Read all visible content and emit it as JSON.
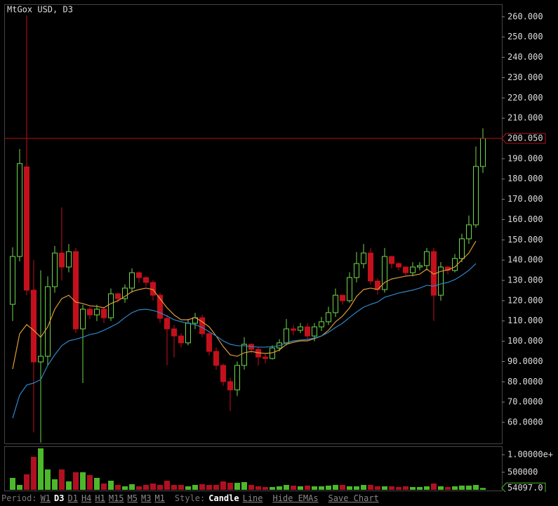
{
  "chart_data": {
    "type": "candlestick",
    "title": "MtGox USD, D3",
    "open": [
      118.2,
      141.8,
      186.0,
      125.2,
      89.8,
      92.6,
      126.9,
      143.5,
      136.6,
      144.2,
      106.1,
      115.8,
      113.0,
      115.8,
      111.6,
      123.4,
      121.0,
      126.2,
      133.8,
      131.4,
      129.0,
      122.7,
      111.3,
      106.1,
      102.6,
      99.2,
      108.9,
      111.6,
      103.7,
      95.0,
      88.1,
      80.1,
      76.0,
      88.1,
      98.5,
      96.0,
      92.2,
      91.5,
      96.7,
      99.2,
      106.1,
      105.4,
      107.1,
      102.6,
      107.1,
      109.6,
      114.1,
      122.7,
      120.0,
      131.4,
      138.3,
      143.5,
      129.7,
      125.5,
      141.8,
      138.3,
      136.6,
      133.8,
      136.6,
      137.3,
      144.2,
      122.7,
      136.6,
      134.9,
      140.8,
      150.5,
      157.4,
      186.2
    ],
    "high": [
      146.3,
      194.8,
      260.7,
      140.0,
      135.0,
      132.0,
      147.0,
      166.0,
      148.0,
      146.0,
      118.0,
      117.0,
      118.0,
      117.0,
      126.0,
      124.0,
      128.0,
      136.0,
      134.5,
      132.0,
      130.0,
      124.0,
      113.0,
      108.0,
      104.0,
      111.0,
      114.0,
      113.0,
      105.0,
      97.0,
      89.0,
      82.0,
      90.0,
      102.0,
      99.0,
      97.0,
      94.0,
      98.0,
      101.0,
      111.0,
      108.0,
      109.0,
      109.0,
      109.0,
      112.0,
      117.0,
      126.0,
      123.0,
      134.0,
      144.0,
      148.0,
      146.0,
      131.0,
      146.0,
      142.0,
      139.0,
      137.0,
      139.0,
      139.0,
      146.0,
      146.0,
      139.0,
      137.0,
      143.0,
      153.0,
      162.0,
      196.0,
      205.0
    ],
    "low": [
      110.0,
      139.4,
      122.7,
      55.0,
      50.0,
      88.0,
      124.0,
      130.0,
      134.0,
      104.0,
      79.4,
      111.0,
      110.0,
      109.0,
      110.0,
      119.0,
      119.0,
      124.0,
      129.0,
      127.0,
      120.0,
      109.0,
      88.1,
      92.0,
      97.0,
      98.0,
      106.0,
      102.0,
      93.0,
      86.0,
      78.0,
      65.5,
      73.0,
      86.0,
      94.0,
      88.0,
      89.0,
      91.0,
      95.0,
      98.0,
      103.0,
      104.0,
      101.0,
      100.0,
      105.0,
      108.0,
      112.0,
      118.0,
      119.0,
      129.0,
      136.0,
      128.0,
      123.0,
      124.0,
      136.0,
      135.0,
      132.0,
      132.0,
      135.0,
      135.0,
      110.0,
      120.0,
      133.0,
      134.0,
      139.0,
      148.0,
      156.0,
      183.0
    ],
    "close": [
      141.8,
      187.6,
      125.2,
      89.8,
      92.6,
      126.9,
      143.5,
      136.6,
      144.2,
      106.1,
      115.8,
      113.0,
      115.8,
      111.6,
      123.4,
      121.0,
      126.2,
      133.8,
      131.4,
      129.0,
      122.7,
      111.3,
      106.1,
      102.6,
      99.2,
      108.9,
      111.6,
      103.7,
      95.0,
      88.1,
      80.1,
      76.0,
      88.1,
      98.5,
      96.0,
      92.2,
      91.5,
      96.7,
      99.2,
      106.1,
      105.4,
      107.1,
      102.6,
      107.1,
      109.6,
      114.1,
      122.7,
      120.0,
      131.4,
      138.3,
      143.5,
      129.7,
      125.5,
      141.8,
      138.3,
      136.6,
      133.8,
      136.6,
      137.3,
      144.2,
      122.7,
      136.6,
      134.9,
      140.8,
      150.5,
      157.4,
      186.2,
      200.05
    ],
    "up_color": "#6fd94a",
    "down_color": "#c4101c",
    "series": [
      {
        "color": "#e09a3a",
        "values": [
          86.3,
          103.7,
          108.2,
          105.4,
          102.0,
          107.1,
          115.8,
          121.0,
          122.7,
          119.3,
          118.6,
          117.5,
          117.2,
          116.5,
          118.6,
          120.0,
          122.1,
          124.5,
          125.5,
          126.2,
          125.5,
          121.0,
          116.5,
          113.0,
          110.6,
          110.6,
          111.7,
          109.6,
          107.1,
          102.6,
          97.4,
          93.3,
          92.6,
          94.3,
          95.0,
          94.3,
          94.0,
          94.3,
          95.7,
          98.5,
          99.5,
          100.2,
          100.2,
          101.3,
          102.6,
          105.4,
          109.6,
          112.4,
          116.5,
          122.1,
          125.5,
          126.2,
          125.5,
          129.0,
          130.7,
          131.4,
          132.1,
          132.5,
          133.1,
          135.6,
          133.1,
          134.5,
          135.2,
          136.6,
          140.1,
          143.5,
          149.4,
          null
        ]
      },
      {
        "color": "#2f86c8",
        "values": [
          62.1,
          73.5,
          78.4,
          79.4,
          81.1,
          88.1,
          93.3,
          97.8,
          100.2,
          101.0,
          102.0,
          103.3,
          104.0,
          105.4,
          107.1,
          108.9,
          111.7,
          114.1,
          115.5,
          115.8,
          115.2,
          114.1,
          112.4,
          110.6,
          109.6,
          108.9,
          108.2,
          106.8,
          104.7,
          102.6,
          100.2,
          98.5,
          97.8,
          97.8,
          97.4,
          97.1,
          97.1,
          97.4,
          97.8,
          99.2,
          100.2,
          100.6,
          100.9,
          101.6,
          102.6,
          104.4,
          106.8,
          108.9,
          111.7,
          114.4,
          116.8,
          118.2,
          119.3,
          121.7,
          122.7,
          123.8,
          124.5,
          125.2,
          126.2,
          127.6,
          127.2,
          128.3,
          129.0,
          130.4,
          132.5,
          135.0,
          138.3,
          null
        ]
      }
    ],
    "ylim": [
      49.6,
      266.2
    ],
    "yticks": [
      {
        "value": 60,
        "label": "60.0000"
      },
      {
        "value": 70,
        "label": "70.0000"
      },
      {
        "value": 80,
        "label": "80.0000"
      },
      {
        "value": 90,
        "label": "90.0000"
      },
      {
        "value": 100,
        "label": "100.000"
      },
      {
        "value": 110,
        "label": "110.000"
      },
      {
        "value": 120,
        "label": "120.000"
      },
      {
        "value": 130,
        "label": "130.000"
      },
      {
        "value": 140,
        "label": "140.000"
      },
      {
        "value": 150,
        "label": "150.000"
      },
      {
        "value": 160,
        "label": "160.000"
      },
      {
        "value": 170,
        "label": "170.000"
      },
      {
        "value": 180,
        "label": "180.000"
      },
      {
        "value": 190,
        "label": "190.000"
      },
      {
        "value": 200,
        "label": "200.000"
      },
      {
        "value": 210,
        "label": "210.000"
      },
      {
        "value": 220,
        "label": "220.000"
      },
      {
        "value": 230,
        "label": "230.000"
      },
      {
        "value": 240,
        "label": "240.000"
      },
      {
        "value": 250,
        "label": "250.000"
      },
      {
        "value": 260,
        "label": "260.000"
      }
    ],
    "last_price": {
      "value": 200.05,
      "label": "200.050"
    },
    "price_line_color": "#b0141e",
    "volume": {
      "values": [
        340000,
        140000,
        440000,
        940000,
        1180000,
        580000,
        300000,
        580000,
        240000,
        500000,
        500000,
        420000,
        340000,
        180000,
        260000,
        140000,
        100000,
        160000,
        100000,
        140000,
        180000,
        140000,
        260000,
        140000,
        140000,
        100000,
        140000,
        160000,
        140000,
        140000,
        240000,
        200000,
        200000,
        220000,
        140000,
        100000,
        80000,
        80000,
        100000,
        140000,
        120000,
        100000,
        120000,
        100000,
        100000,
        120000,
        140000,
        140000,
        100000,
        100000,
        140000,
        140000,
        100000,
        100000,
        100000,
        80000,
        100000,
        80000,
        80000,
        100000,
        180000,
        100000,
        80000,
        100000,
        120000,
        120000,
        140000,
        54097
      ],
      "ylim": [
        -20000,
        1240000
      ],
      "yticks": [
        {
          "value": 1000000,
          "label": "1.00000e+"
        },
        {
          "value": 500000,
          "label": "500000"
        }
      ],
      "last": {
        "value": 54097,
        "label": "54097.0"
      },
      "up_color": "#4cb82a",
      "down_color": "#b01020"
    }
  },
  "toolbar": {
    "period_label": "Period:",
    "periods": [
      "W1",
      "D3",
      "D1",
      "H4",
      "H1",
      "M15",
      "M5",
      "M3",
      "M1"
    ],
    "selected_period": "D3",
    "style_label": "Style:",
    "styles": [
      "Candle",
      "Line"
    ],
    "selected_style": "Candle",
    "actions": [
      "Hide EMAs",
      "Save Chart"
    ]
  }
}
